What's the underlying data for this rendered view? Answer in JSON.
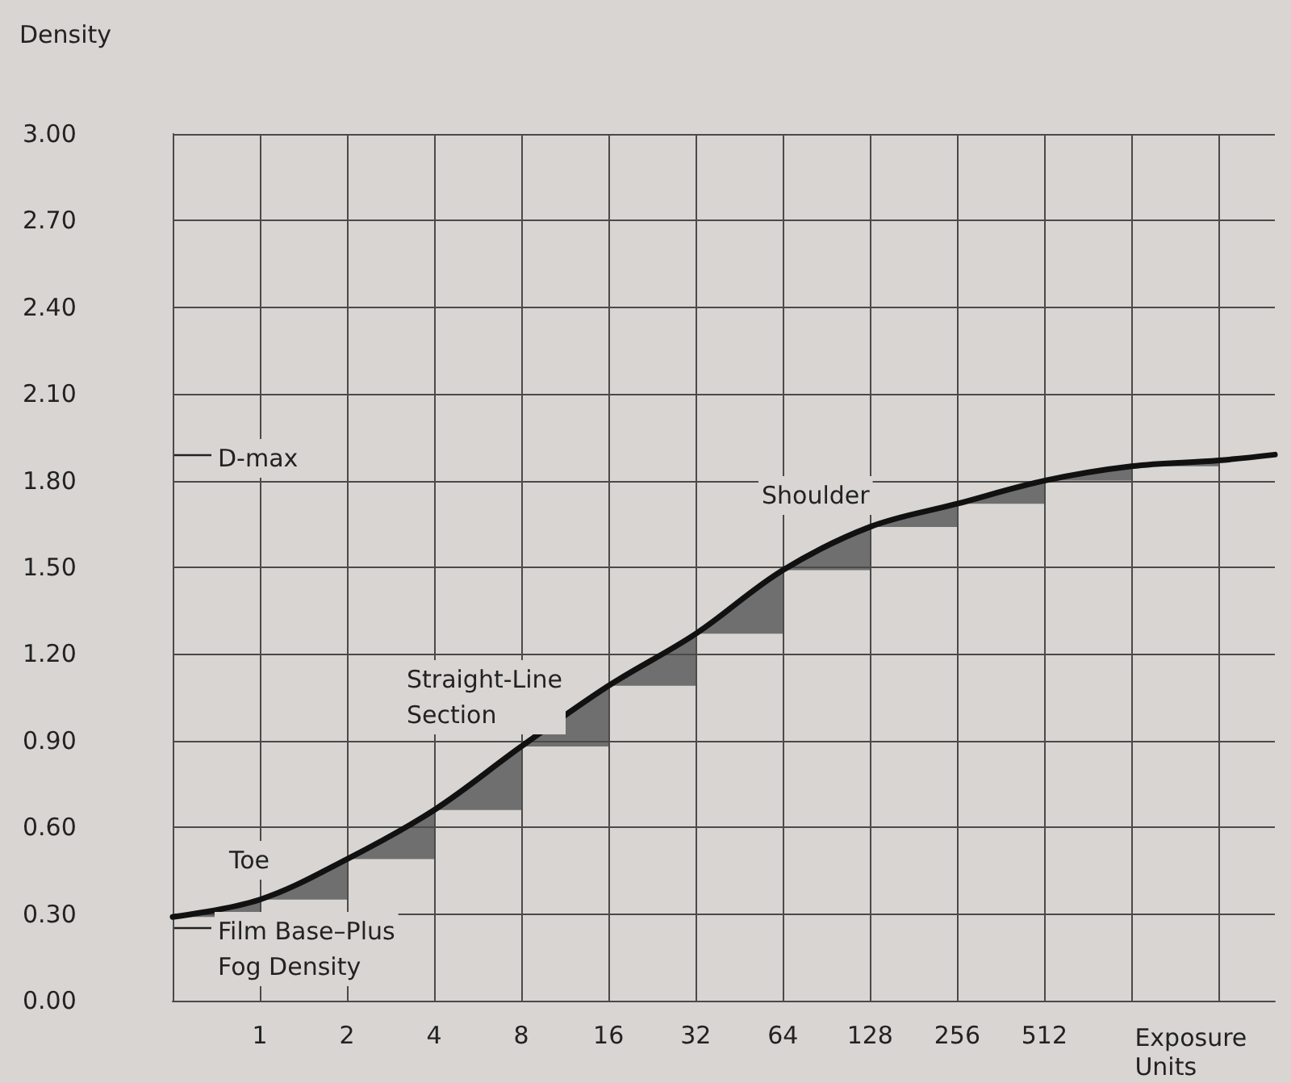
{
  "chart_data": {
    "type": "line",
    "ylabel": "Density",
    "xlabel": "Exposure Units",
    "x": [
      0.5,
      1,
      2,
      4,
      8,
      16,
      32,
      64,
      128,
      256,
      512,
      1024,
      2048,
      3200
    ],
    "series": [
      {
        "color": "#111111",
        "values": [
          0.29,
          0.35,
          0.49,
          0.66,
          0.88,
          1.09,
          1.27,
          1.49,
          1.64,
          1.72,
          1.8,
          1.85,
          1.87,
          1.89
        ]
      }
    ],
    "log": "x",
    "xlim": [
      0.5,
      3200
    ],
    "xticks": [
      1,
      2,
      4,
      8,
      16,
      32,
      64,
      128,
      256,
      512,
      {
        "value": 1024,
        "label": null
      },
      {
        "value": 2048,
        "label": null
      }
    ],
    "ylim": [
      0,
      3
    ],
    "yticks": [
      {
        "value": 0,
        "label": "0.00"
      },
      {
        "value": 0.3,
        "label": "0.30"
      },
      {
        "value": 0.6,
        "label": "0.60"
      },
      {
        "value": 0.9,
        "label": "0.90"
      },
      {
        "value": 1.2,
        "label": "1.20"
      },
      {
        "value": 1.5,
        "label": "1.50"
      },
      {
        "value": 1.8,
        "label": "1.80"
      },
      {
        "value": 2.1,
        "label": "2.10"
      },
      {
        "value": 2.4,
        "label": "2.40"
      },
      {
        "value": 2.7,
        "label": "2.70"
      },
      {
        "value": 3,
        "label": "3.00"
      }
    ],
    "grid": true,
    "marker": "none",
    "line_style": "solid",
    "annotations": [
      "D-max",
      "Film Base–Plus\nFog Density",
      "Toe",
      "Straight-Line\nSection",
      "Shoulder"
    ]
  }
}
